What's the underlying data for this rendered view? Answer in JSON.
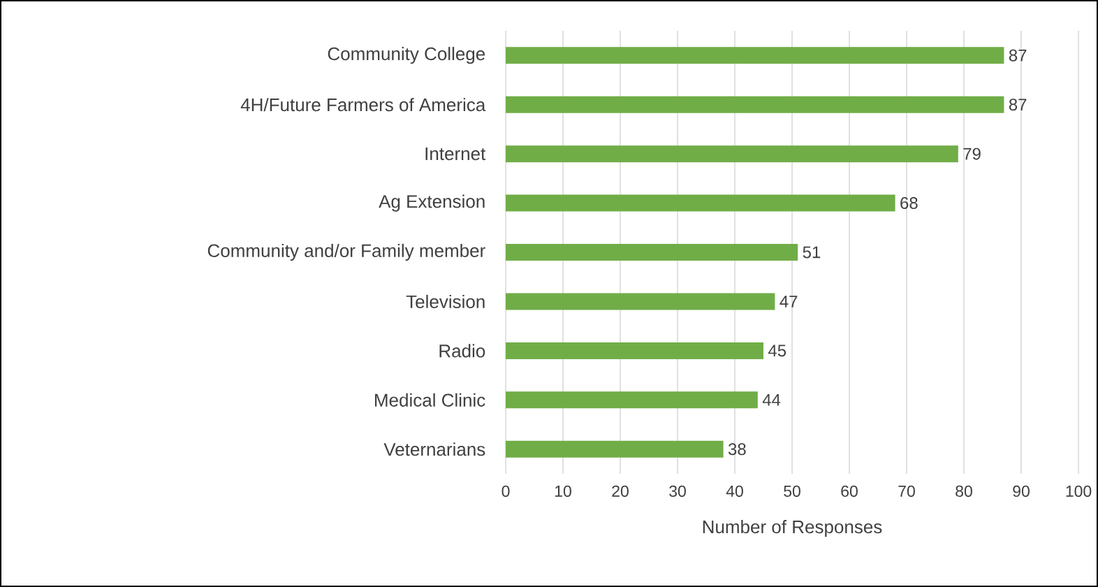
{
  "chart_data": {
    "type": "bar",
    "orientation": "horizontal",
    "categories": [
      "Community College",
      "4H/Future Farmers of America",
      "Internet",
      "Ag Extension",
      "Community and/or Family member",
      "Television",
      "Radio",
      "Medical Clinic",
      "Veternarians"
    ],
    "values": [
      87,
      87,
      79,
      68,
      51,
      47,
      45,
      44,
      38
    ],
    "color": "#70ad47",
    "xlim": [
      0,
      100
    ],
    "xticks": [
      0,
      10,
      20,
      30,
      40,
      50,
      60,
      70,
      80,
      90,
      100
    ],
    "xlabel": "Number of Responses",
    "grid": "x",
    "data_labels": true
  }
}
